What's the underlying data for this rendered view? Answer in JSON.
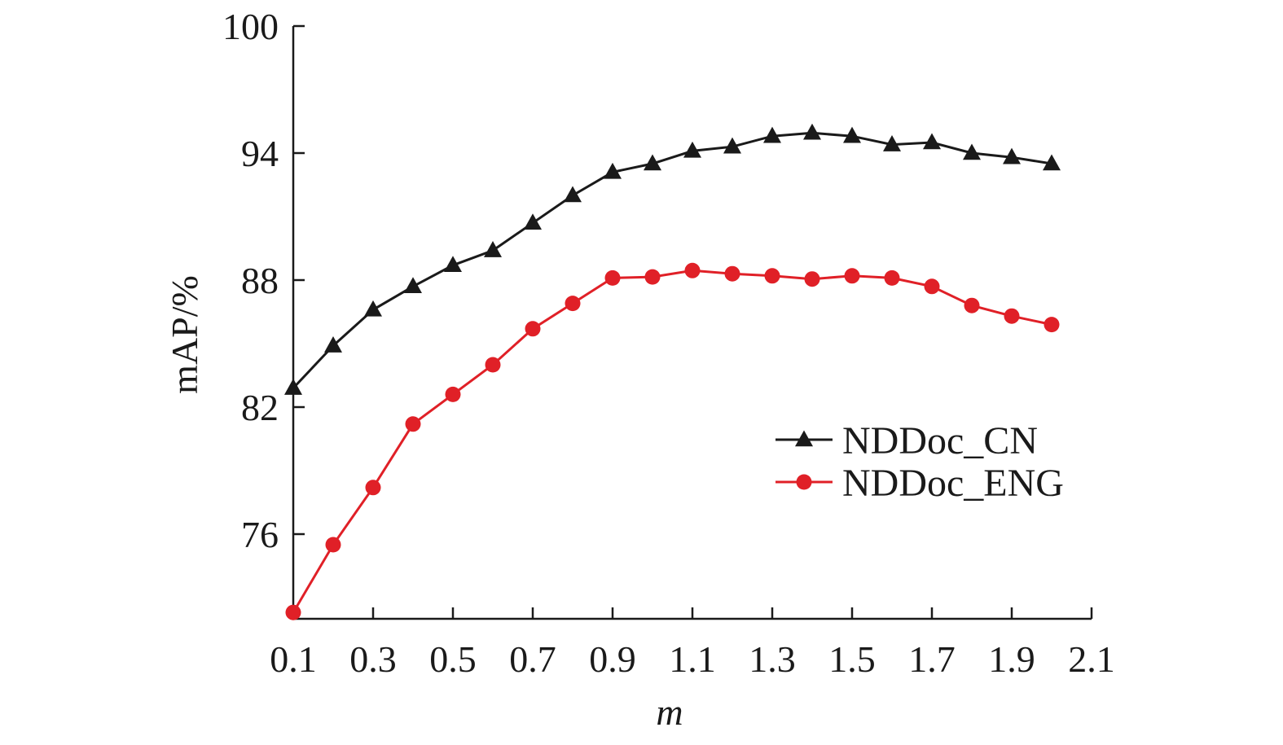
{
  "chart_data": {
    "type": "line",
    "title": "",
    "xlabel": "m",
    "ylabel": "mAP/%",
    "xlim": [
      0.1,
      2.1
    ],
    "ylim": [
      72,
      100
    ],
    "x_ticks": [
      0.1,
      0.3,
      0.5,
      0.7,
      0.9,
      1.1,
      1.3,
      1.5,
      1.7,
      1.9,
      2.1
    ],
    "x_tick_labels": [
      "0.1",
      "0.3",
      "0.5",
      "0.7",
      "0.9",
      "1.1",
      "1.3",
      "1.5",
      "1.7",
      "1.9",
      "2.1"
    ],
    "y_ticks": [
      76,
      82,
      88,
      94,
      100
    ],
    "y_tick_labels": [
      "76",
      "82",
      "88",
      "94",
      "100"
    ],
    "grid": false,
    "legend_position": "right",
    "x": [
      0.1,
      0.2,
      0.3,
      0.4,
      0.5,
      0.6,
      0.7,
      0.8,
      0.9,
      1.0,
      1.1,
      1.2,
      1.3,
      1.4,
      1.5,
      1.6,
      1.7,
      1.8,
      1.9,
      2.0
    ],
    "series": [
      {
        "name": "NDDoc_CN",
        "color": "#1a1a1a",
        "marker": "triangle",
        "values": [
          82.9,
          84.9,
          86.6,
          87.7,
          88.7,
          89.4,
          90.7,
          92.0,
          93.1,
          93.5,
          94.1,
          94.3,
          94.8,
          94.95,
          94.8,
          94.4,
          94.5,
          94.0,
          93.8,
          93.5
        ]
      },
      {
        "name": "NDDoc_ENG",
        "color": "#e02027",
        "marker": "circle",
        "values": [
          72.3,
          75.5,
          78.2,
          81.2,
          82.6,
          84.0,
          85.7,
          86.9,
          88.1,
          88.15,
          88.45,
          88.3,
          88.2,
          88.05,
          88.2,
          88.1,
          87.7,
          86.8,
          86.3,
          85.9
        ]
      }
    ]
  }
}
